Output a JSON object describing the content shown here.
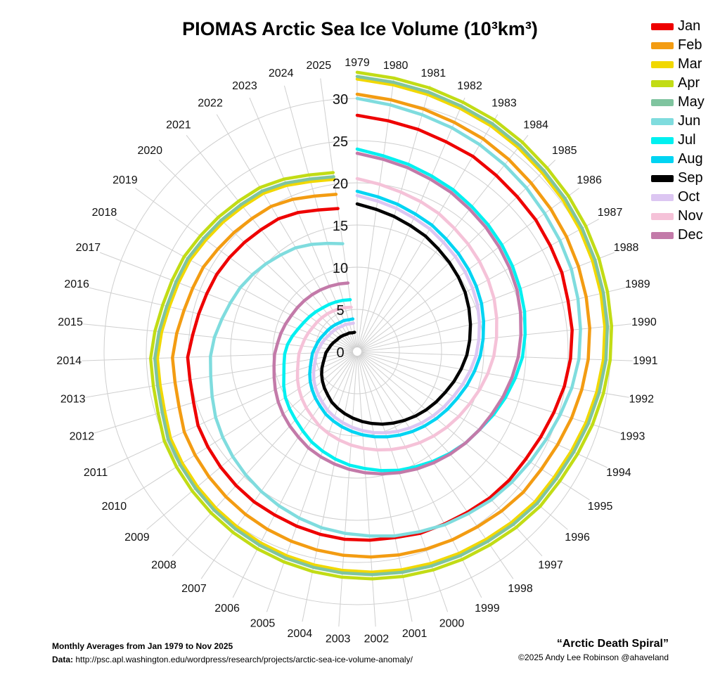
{
  "chart_data": {
    "type": "line",
    "subtype": "polar-spiral",
    "title": "PIOMAS Arctic Sea Ice Volume (10³km³)",
    "radial_ticks": [
      "0",
      "5",
      "10",
      "15",
      "20",
      "25",
      "30"
    ],
    "r_range": [
      0,
      33
    ],
    "grid": true,
    "legend_position": "top-right",
    "years": [
      1979,
      1980,
      1981,
      1982,
      1983,
      1984,
      1985,
      1986,
      1987,
      1988,
      1989,
      1990,
      1991,
      1992,
      1993,
      1994,
      1995,
      1996,
      1997,
      1998,
      1999,
      2000,
      2001,
      2002,
      2003,
      2004,
      2005,
      2006,
      2007,
      2008,
      2009,
      2010,
      2011,
      2012,
      2013,
      2014,
      2015,
      2016,
      2017,
      2018,
      2019,
      2020,
      2021,
      2022,
      2023,
      2024,
      2025
    ],
    "series": [
      {
        "name": "Jan",
        "color": "#ee0000",
        "values": [
          28.0,
          27.6,
          27.3,
          27.0,
          26.9,
          26.6,
          26.4,
          26.3,
          26.1,
          26.0,
          25.7,
          25.6,
          25.3,
          24.9,
          24.4,
          24.0,
          23.7,
          23.6,
          23.4,
          23.1,
          22.9,
          22.8,
          22.5,
          22.4,
          22.3,
          22.1,
          21.9,
          21.7,
          21.6,
          21.4,
          21.2,
          21.0,
          20.8,
          20.3,
          20.1,
          20.1,
          19.6,
          19.3,
          19.1,
          19.0,
          18.8,
          18.6,
          18.4,
          18.3,
          17.9,
          17.4,
          17.1
        ]
      },
      {
        "name": "Feb",
        "color": "#f39c12",
        "values": [
          30.5,
          30.1,
          29.8,
          29.5,
          29.3,
          29.0,
          28.7,
          28.5,
          28.3,
          28.1,
          27.9,
          27.7,
          27.4,
          27.0,
          26.6,
          26.2,
          25.9,
          25.8,
          25.5,
          25.2,
          25.0,
          24.8,
          24.6,
          24.4,
          24.2,
          24.0,
          23.8,
          23.6,
          23.4,
          23.2,
          23.0,
          22.8,
          22.6,
          22.1,
          21.9,
          21.9,
          21.5,
          21.1,
          20.9,
          20.8,
          20.5,
          20.3,
          20.1,
          20.0,
          19.6,
          19.1,
          18.8
        ]
      },
      {
        "name": "Mar",
        "color": "#f1d800",
        "values": [
          32.3,
          31.9,
          31.6,
          31.3,
          31.1,
          30.8,
          30.5,
          30.3,
          30.1,
          29.9,
          29.7,
          29.5,
          29.2,
          28.8,
          28.4,
          28.0,
          27.7,
          27.6,
          27.3,
          27.0,
          26.8,
          26.6,
          26.4,
          26.2,
          26.0,
          25.8,
          25.6,
          25.4,
          25.2,
          25.0,
          24.8,
          24.6,
          24.4,
          23.9,
          23.7,
          23.7,
          23.3,
          22.9,
          22.7,
          22.6,
          22.3,
          22.1,
          21.9,
          21.8,
          21.4,
          20.9,
          20.6
        ]
      },
      {
        "name": "Apr",
        "color": "#c2dc15",
        "values": [
          33.1,
          32.7,
          32.4,
          32.1,
          31.9,
          31.6,
          31.3,
          31.1,
          30.9,
          30.7,
          30.5,
          30.3,
          30.0,
          29.6,
          29.2,
          28.8,
          28.5,
          28.4,
          28.1,
          27.8,
          27.6,
          27.4,
          27.2,
          27.0,
          26.8,
          26.6,
          26.4,
          26.2,
          26.0,
          25.8,
          25.6,
          25.4,
          25.2,
          24.7,
          24.5,
          24.5,
          24.1,
          23.7,
          23.5,
          23.4,
          23.1,
          22.9,
          22.7,
          22.6,
          22.2,
          21.7,
          21.4
        ]
      },
      {
        "name": "May",
        "color": "#7fc49f",
        "values": [
          32.6,
          32.2,
          31.9,
          31.6,
          31.4,
          31.1,
          30.8,
          30.6,
          30.4,
          30.2,
          30.0,
          29.8,
          29.5,
          29.1,
          28.7,
          28.3,
          28.0,
          27.9,
          27.6,
          27.3,
          27.1,
          26.9,
          26.7,
          26.5,
          26.3,
          26.1,
          25.9,
          25.7,
          25.5,
          25.3,
          25.1,
          24.9,
          24.7,
          24.2,
          24.0,
          24.0,
          23.6,
          23.2,
          23.0,
          22.9,
          22.6,
          22.4,
          22.2,
          22.1,
          21.7,
          21.2,
          20.9
        ]
      },
      {
        "name": "Jun",
        "color": "#7fdcde",
        "values": [
          30.0,
          29.5,
          29.1,
          28.8,
          28.5,
          28.2,
          27.9,
          27.6,
          27.4,
          27.2,
          26.9,
          26.6,
          26.3,
          25.8,
          25.2,
          24.7,
          24.3,
          24.0,
          23.7,
          23.3,
          23.0,
          22.6,
          22.3,
          21.9,
          21.6,
          21.3,
          20.9,
          20.5,
          20.1,
          19.7,
          19.3,
          18.9,
          18.5,
          18.0,
          17.6,
          17.4,
          17.0,
          16.5,
          16.1,
          15.8,
          15.4,
          15.0,
          14.6,
          14.3,
          13.8,
          13.3,
          12.9
        ]
      },
      {
        "name": "Jul",
        "color": "#00f0f0",
        "values": [
          24.0,
          23.4,
          23.0,
          22.6,
          22.3,
          21.9,
          21.6,
          21.3,
          21.0,
          20.7,
          20.4,
          20.0,
          19.6,
          19.0,
          18.4,
          17.8,
          17.2,
          16.8,
          16.3,
          15.8,
          15.3,
          14.9,
          14.4,
          13.9,
          13.5,
          13.0,
          12.5,
          12.0,
          11.4,
          10.9,
          10.5,
          10.1,
          9.6,
          9.1,
          8.8,
          8.6,
          8.3,
          7.9,
          7.5,
          7.2,
          7.0,
          6.8,
          6.6,
          6.5,
          6.4,
          6.3,
          6.2
        ]
      },
      {
        "name": "Aug",
        "color": "#00d4f2",
        "values": [
          19.0,
          18.5,
          18.1,
          17.7,
          17.4,
          17.0,
          16.7,
          16.4,
          16.1,
          15.8,
          15.4,
          15.0,
          14.6,
          14.1,
          13.6,
          13.1,
          12.7,
          12.3,
          11.9,
          11.5,
          11.1,
          10.7,
          10.3,
          9.9,
          9.5,
          9.1,
          8.7,
          8.3,
          7.8,
          7.4,
          7.0,
          6.6,
          6.2,
          5.8,
          5.5,
          5.3,
          5.0,
          4.8,
          4.6,
          4.4,
          4.3,
          4.2,
          4.1,
          4.0,
          4.0,
          3.9,
          3.9
        ]
      },
      {
        "name": "Sep",
        "color": "#000000",
        "values": [
          17.5,
          17.0,
          16.6,
          16.2,
          15.9,
          15.5,
          15.2,
          14.9,
          14.6,
          14.2,
          13.8,
          13.4,
          13.0,
          12.5,
          12.0,
          11.5,
          11.1,
          10.7,
          10.3,
          9.9,
          9.5,
          9.1,
          8.7,
          8.3,
          7.9,
          7.5,
          7.1,
          6.7,
          6.2,
          5.8,
          5.4,
          5.0,
          4.6,
          4.2,
          3.9,
          3.7,
          3.4,
          3.2,
          3.0,
          2.8,
          2.7,
          2.6,
          2.5,
          2.4,
          2.4,
          2.3,
          2.3
        ]
      },
      {
        "name": "Oct",
        "color": "#dcc6f2",
        "values": [
          18.5,
          18.0,
          17.6,
          17.2,
          16.9,
          16.5,
          16.2,
          15.9,
          15.6,
          15.3,
          14.9,
          14.5,
          14.1,
          13.6,
          13.1,
          12.6,
          12.2,
          11.8,
          11.4,
          11.0,
          10.6,
          10.2,
          9.8,
          9.4,
          9.0,
          8.6,
          8.2,
          7.8,
          7.3,
          6.9,
          6.5,
          6.1,
          5.7,
          5.3,
          5.0,
          4.8,
          4.5,
          4.3,
          4.1,
          3.9,
          3.8,
          3.7,
          3.6,
          3.5,
          3.5,
          3.4,
          3.4
        ]
      },
      {
        "name": "Nov",
        "color": "#f5c2d8",
        "values": [
          20.5,
          20.0,
          19.6,
          19.3,
          19.0,
          18.6,
          18.3,
          18.0,
          17.7,
          17.4,
          17.0,
          16.6,
          16.2,
          15.7,
          15.2,
          14.7,
          14.3,
          13.9,
          13.5,
          13.1,
          12.7,
          12.3,
          11.9,
          11.5,
          11.1,
          10.7,
          10.3,
          9.9,
          9.4,
          9.0,
          8.6,
          8.2,
          7.8,
          7.4,
          7.1,
          6.9,
          6.6,
          6.4,
          6.2,
          6.0,
          5.9,
          5.8,
          5.7,
          5.6,
          5.5,
          5.4,
          5.3
        ]
      },
      {
        "name": "Dec",
        "color": "#c37aa9",
        "values": [
          23.5,
          23.0,
          22.6,
          22.2,
          21.9,
          21.5,
          21.2,
          20.9,
          20.6,
          20.3,
          19.9,
          19.5,
          19.1,
          18.6,
          18.1,
          17.6,
          17.2,
          16.8,
          16.4,
          16.0,
          15.6,
          15.2,
          14.8,
          14.4,
          14.0,
          13.6,
          13.2,
          12.8,
          12.3,
          11.9,
          11.5,
          11.1,
          10.7,
          10.3,
          10.0,
          9.8,
          9.5,
          9.3,
          9.1,
          8.9,
          8.8,
          8.7,
          8.6,
          8.5,
          8.4,
          8.3,
          8.2
        ]
      }
    ]
  },
  "footer": {
    "left_line1": "Monthly Averages from Jan 1979 to Nov 2025",
    "left_label": "Data:",
    "left_url": "http://psc.apl.washington.edu/wordpress/research/projects/arctic-sea-ice-volume-anomaly/",
    "right_title": "“Arctic Death Spiral”",
    "right_credit": "©2025 Andy Lee Robinson @ahaveland"
  }
}
